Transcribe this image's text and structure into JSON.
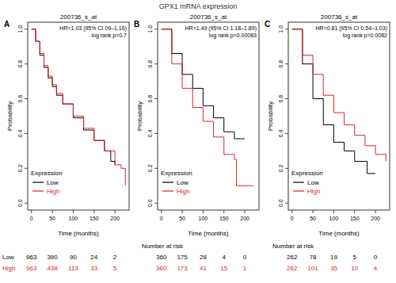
{
  "title": "GPX1 mRNA expression",
  "chart_data": [
    {
      "type": "step",
      "panel": "A",
      "title": "200736_s_at",
      "x_label": "Time (months)",
      "y_label": "Probability",
      "annotations": [
        "HR=1.03 (95% CI 09–1.16)",
        "log rank p=0.7"
      ],
      "xlim": [
        -9,
        234
      ],
      "xticks": [
        0,
        50,
        100,
        150,
        200
      ],
      "ylim": [
        -0.04,
        1.04
      ],
      "yticks": [
        {
          "value": 0,
          "label": "0.0"
        },
        {
          "value": 0.2,
          "label": "0.2"
        },
        {
          "value": 0.4,
          "label": "0.4"
        },
        {
          "value": 0.6,
          "label": "0.6"
        },
        {
          "value": 0.8,
          "label": "0.8"
        },
        {
          "value": 1,
          "label": "1.0"
        }
      ],
      "legend": "bottom-left",
      "legend_title": "Expression",
      "series": [
        {
          "name": "Low",
          "color": "#000000",
          "x": [
            0,
            10,
            20,
            30,
            40,
            50,
            60,
            75,
            100,
            125,
            150,
            175,
            190,
            200
          ],
          "values": [
            1,
            0.93,
            0.85,
            0.78,
            0.72,
            0.67,
            0.62,
            0.57,
            0.49,
            0.42,
            0.36,
            0.3,
            0.24,
            0.22
          ]
        },
        {
          "name": "High",
          "color": "#e0202a",
          "x": [
            0,
            10,
            20,
            30,
            40,
            50,
            60,
            75,
            100,
            125,
            150,
            175,
            200,
            215,
            225
          ],
          "values": [
            1,
            0.93,
            0.86,
            0.79,
            0.73,
            0.68,
            0.63,
            0.57,
            0.5,
            0.43,
            0.36,
            0.3,
            0.22,
            0.2,
            0.1
          ]
        }
      ],
      "risk_table": {
        "x": [
          0,
          50,
          100,
          150,
          200
        ],
        "rows": [
          {
            "name": "Low",
            "color": "#000000",
            "values": [
              963,
              390,
              90,
              24,
              2
            ]
          },
          {
            "name": "High",
            "color": "#e0202a",
            "values": [
              963,
              438,
              113,
              33,
              5
            ]
          }
        ]
      }
    },
    {
      "type": "step",
      "panel": "B",
      "title": "200736_s_at",
      "x_label": "Time (months)",
      "y_label": "Probability",
      "annotations": [
        "HR=1.49 (95% CI 1.18–1.89)",
        "log rank p=0.00083"
      ],
      "xlim": [
        -9,
        234
      ],
      "xticks": [
        0,
        50,
        100,
        150,
        200
      ],
      "ylim": [
        -0.04,
        1.04
      ],
      "yticks": [
        {
          "value": 0,
          "label": "0.0"
        },
        {
          "value": 0.2,
          "label": "0.2"
        },
        {
          "value": 0.4,
          "label": "0.4"
        },
        {
          "value": 0.6,
          "label": "0.6"
        },
        {
          "value": 0.8,
          "label": "0.8"
        },
        {
          "value": 1,
          "label": "1.0"
        }
      ],
      "legend": "bottom-left",
      "legend_title": "Expression",
      "series": [
        {
          "name": "Low",
          "color": "#000000",
          "x": [
            0,
            25,
            50,
            75,
            100,
            125,
            150,
            175,
            200
          ],
          "values": [
            1,
            0.86,
            0.74,
            0.66,
            0.56,
            0.49,
            0.41,
            0.37,
            0.37
          ]
        },
        {
          "name": "High",
          "color": "#e0202a",
          "x": [
            0,
            25,
            50,
            75,
            100,
            125,
            150,
            175,
            180,
            220
          ],
          "values": [
            1,
            0.8,
            0.66,
            0.55,
            0.47,
            0.38,
            0.28,
            0.25,
            0.1,
            0.1
          ]
        }
      ],
      "risk_table": {
        "title": "Number at risk",
        "x": [
          0,
          50,
          100,
          150,
          200
        ],
        "rows": [
          {
            "color": "#000000",
            "values": [
              360,
              175,
              28,
              4,
              0
            ]
          },
          {
            "color": "#e0202a",
            "values": [
              360,
              173,
              41,
              15,
              1
            ]
          }
        ]
      }
    },
    {
      "type": "step",
      "panel": "C",
      "title": "200736_s_at",
      "x_label": "Time (months)",
      "y_label": "Probability",
      "annotations": [
        "HR=0.81 (95% CI 0.54–1.03)",
        "log rank p=0.0082"
      ],
      "xlim": [
        -9,
        234
      ],
      "xticks": [
        0,
        50,
        100,
        150,
        200
      ],
      "ylim": [
        -0.04,
        1.04
      ],
      "yticks": [
        {
          "value": 0,
          "label": "0.0"
        },
        {
          "value": 0.2,
          "label": "0.2"
        },
        {
          "value": 0.4,
          "label": "0.4"
        },
        {
          "value": 0.6,
          "label": "0.6"
        },
        {
          "value": 0.8,
          "label": "0.8"
        },
        {
          "value": 1,
          "label": "1.0"
        }
      ],
      "legend": "bottom-left",
      "legend_title": "Expression",
      "series": [
        {
          "name": "Low",
          "color": "#000000",
          "x": [
            0,
            25,
            50,
            75,
            100,
            125,
            150,
            175,
            180,
            200
          ],
          "values": [
            1,
            0.8,
            0.6,
            0.45,
            0.35,
            0.3,
            0.24,
            0.24,
            0.17,
            0.17
          ]
        },
        {
          "name": "High",
          "color": "#e0202a",
          "x": [
            0,
            25,
            50,
            75,
            100,
            125,
            150,
            175,
            200,
            225
          ],
          "values": [
            1,
            0.85,
            0.74,
            0.62,
            0.52,
            0.45,
            0.39,
            0.33,
            0.28,
            0.24
          ]
        }
      ],
      "risk_table": {
        "title": "Number at risk",
        "x": [
          0,
          50,
          100,
          150,
          200
        ],
        "rows": [
          {
            "color": "#000000",
            "values": [
              262,
              78,
              19,
              5,
              0
            ]
          },
          {
            "color": "#e0202a",
            "values": [
              262,
              101,
              35,
              10,
              4
            ]
          }
        ]
      }
    }
  ]
}
